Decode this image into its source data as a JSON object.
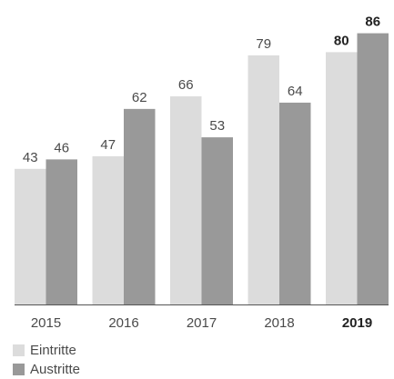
{
  "chart_data": {
    "type": "bar",
    "categories": [
      "2015",
      "2016",
      "2017",
      "2018",
      "2019"
    ],
    "highlight_category": "2019",
    "series": [
      {
        "name": "Eintritte",
        "values": [
          43,
          47,
          66,
          79,
          80
        ],
        "color": "#dcdcdc"
      },
      {
        "name": "Austritte",
        "values": [
          46,
          62,
          53,
          64,
          86
        ],
        "color": "#999999"
      }
    ],
    "ylim": [
      0,
      90
    ],
    "grid": false,
    "data_labels": true,
    "legend_position": "bottom-left",
    "colors": {
      "text": "#4a4a4a",
      "text_bold": "#222222",
      "baseline": "#555555"
    }
  }
}
